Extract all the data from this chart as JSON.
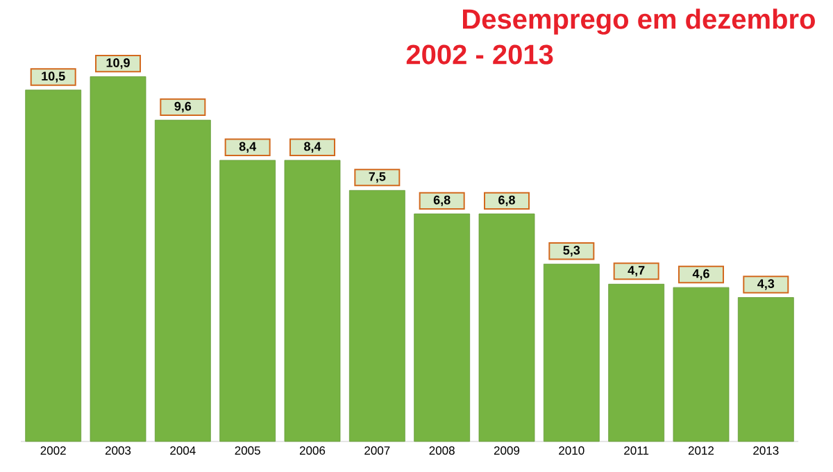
{
  "chart_data": {
    "type": "bar",
    "title": "Desemprego em dezembro",
    "subtitle": "2002 - 2013",
    "categories": [
      "2002",
      "2003",
      "2004",
      "2005",
      "2006",
      "2007",
      "2008",
      "2009",
      "2010",
      "2011",
      "2012",
      "2013"
    ],
    "values": [
      10.5,
      10.9,
      9.6,
      8.4,
      8.4,
      7.5,
      6.8,
      6.8,
      5.3,
      4.7,
      4.6,
      4.3
    ],
    "value_labels": [
      "10,5",
      "10,9",
      "9,6",
      "8,4",
      "8,4",
      "7,5",
      "6,8",
      "6,8",
      "5,3",
      "4,7",
      "4,6",
      "4,3"
    ],
    "color": "#77b442"
  }
}
